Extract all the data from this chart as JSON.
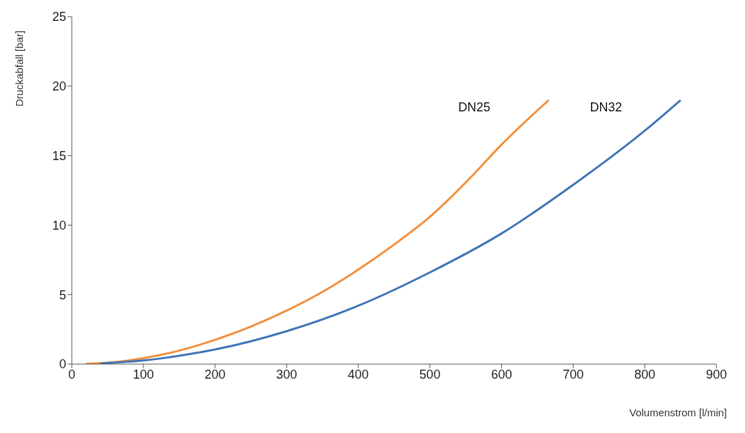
{
  "chart_data": {
    "type": "line",
    "xlabel": "Volumenstrom [l/min]",
    "ylabel": "Druckabfall [bar]",
    "xlim": [
      0,
      900
    ],
    "xticks": [
      0,
      100,
      200,
      300,
      400,
      500,
      600,
      700,
      800,
      900
    ],
    "ylim": [
      0,
      25
    ],
    "yticks": [
      0,
      5,
      10,
      15,
      20,
      25
    ],
    "grid": false,
    "series": [
      {
        "name": "DN25",
        "color": "#f28e3c",
        "x": [
          20,
          50,
          100,
          150,
          200,
          250,
          300,
          350,
          400,
          450,
          500,
          560,
          600,
          666
        ],
        "values": [
          0.02,
          0.1,
          0.43,
          0.97,
          1.75,
          2.7,
          3.85,
          5.2,
          6.8,
          8.6,
          10.6,
          13.6,
          15.8,
          19
        ]
      },
      {
        "name": "DN32",
        "color": "#3f75b5",
        "x": [
          40,
          100,
          150,
          200,
          300,
          400,
          500,
          600,
          700,
          800,
          850
        ],
        "values": [
          0.05,
          0.26,
          0.6,
          1.05,
          2.37,
          4.2,
          6.6,
          9.4,
          12.9,
          16.8,
          19
        ]
      }
    ]
  }
}
